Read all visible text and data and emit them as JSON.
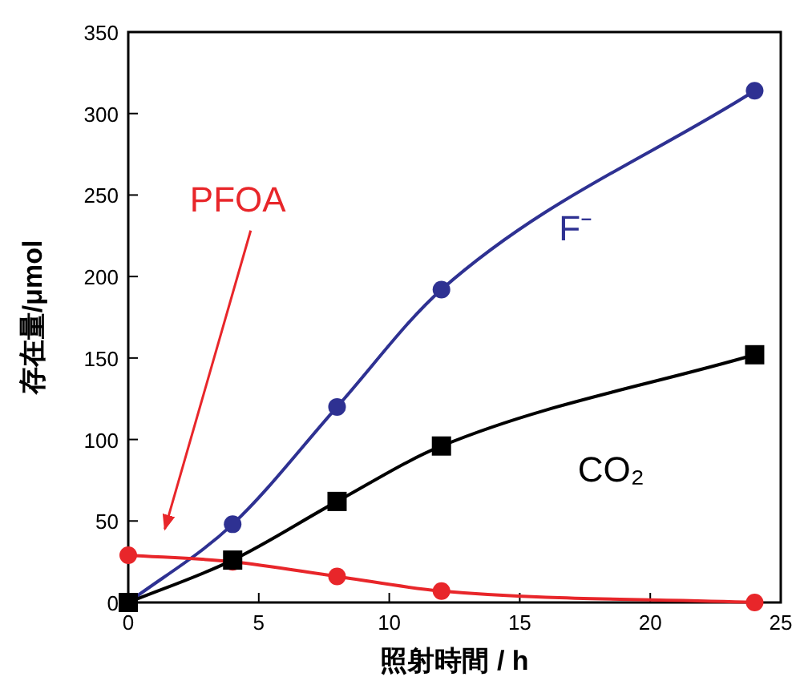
{
  "chart_data": {
    "type": "line",
    "xlabel": "照射時間 / h",
    "ylabel": "存在量/μmol",
    "xlim": [
      0,
      25
    ],
    "xticks": [
      0,
      5,
      10,
      15,
      20,
      25
    ],
    "ylim": [
      0,
      350
    ],
    "yticks": [
      0,
      50,
      100,
      150,
      200,
      250,
      300,
      350
    ],
    "x": [
      0,
      4,
      8,
      12,
      24
    ],
    "series": [
      {
        "name": "F⁻",
        "color": "#2e3192",
        "marker": "circle",
        "values": [
          0,
          48,
          120,
          192,
          314
        ]
      },
      {
        "name": "PFOA",
        "color": "#e8262a",
        "marker": "circle",
        "values": [
          29,
          25,
          16,
          7,
          0
        ]
      },
      {
        "name": "CO₂",
        "color": "#000000",
        "marker": "square",
        "values": [
          0,
          26,
          62,
          96,
          152
        ]
      }
    ],
    "grid": false
  }
}
